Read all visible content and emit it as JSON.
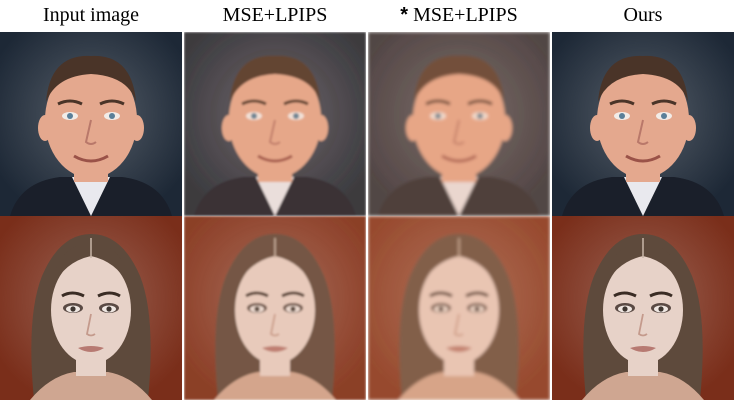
{
  "columns": [
    {
      "marker": "",
      "label": "Input image"
    },
    {
      "marker": "",
      "label": "MSE+LPIPS"
    },
    {
      "marker": "*",
      "label": " MSE+LPIPS"
    },
    {
      "marker": "",
      "label": "Ours"
    }
  ],
  "rows": [
    {
      "subject": "man-suit",
      "background": "#1d2836",
      "skin": "#e4a88e",
      "hair": "#4a3428",
      "clothing": "#1a1f2a",
      "collar": "#e9e9ee",
      "eyes": "#5a7f99"
    },
    {
      "subject": "woman-long-hair",
      "background": "#7a2e1a",
      "skin": "#e7d2c8",
      "hair": "#5e4a3c",
      "clothing": "#cfa691",
      "collar": "#e7d2c8",
      "eyes": "#3d3530"
    }
  ],
  "variants": [
    {
      "blur": 0,
      "warmth": 0
    },
    {
      "blur": 1,
      "warmth": 0.15
    },
    {
      "blur": 1.6,
      "warmth": 0.25
    },
    {
      "blur": 0,
      "warmth": 0
    }
  ]
}
